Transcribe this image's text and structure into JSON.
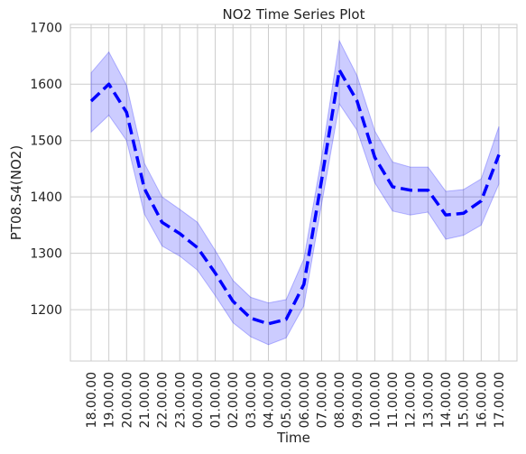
{
  "chart_data": {
    "type": "line",
    "title": "NO2 Time Series Plot",
    "xlabel": "Time",
    "ylabel": "PT08.S4(NO2)",
    "categories": [
      "18.00.00",
      "19.00.00",
      "20.00.00",
      "21.00.00",
      "22.00.00",
      "23.00.00",
      "00.00.00",
      "01.00.00",
      "02.00.00",
      "03.00.00",
      "04.00.00",
      "05.00.00",
      "06.00.00",
      "07.00.00",
      "08.00.00",
      "09.00.00",
      "10.00.00",
      "11.00.00",
      "12.00.00",
      "13.00.00",
      "14.00.00",
      "15.00.00",
      "16.00.00",
      "17.00.00"
    ],
    "series": [
      {
        "values": [
          1570,
          1600,
          1550,
          1415,
          1355,
          1335,
          1310,
          1265,
          1215,
          1185,
          1175,
          1183,
          1245,
          1430,
          1625,
          1570,
          1470,
          1418,
          1412,
          1412,
          1368,
          1371,
          1393,
          1475
        ],
        "lower": [
          1515,
          1545,
          1500,
          1370,
          1313,
          1295,
          1270,
          1225,
          1177,
          1152,
          1138,
          1150,
          1207,
          1387,
          1565,
          1518,
          1425,
          1375,
          1368,
          1373,
          1325,
          1332,
          1350,
          1423
        ],
        "upper": [
          1620,
          1657,
          1598,
          1460,
          1400,
          1378,
          1355,
          1305,
          1252,
          1222,
          1212,
          1218,
          1290,
          1470,
          1677,
          1615,
          1517,
          1462,
          1453,
          1453,
          1410,
          1413,
          1432,
          1525
        ],
        "color": "#0000ff",
        "band_color": "#0000ff",
        "line_style": "dashed"
      }
    ],
    "yticks": [
      1200,
      1300,
      1400,
      1500,
      1600,
      1700
    ],
    "ylim": [
      1109,
      1706
    ],
    "grid": true,
    "legend": "none"
  }
}
